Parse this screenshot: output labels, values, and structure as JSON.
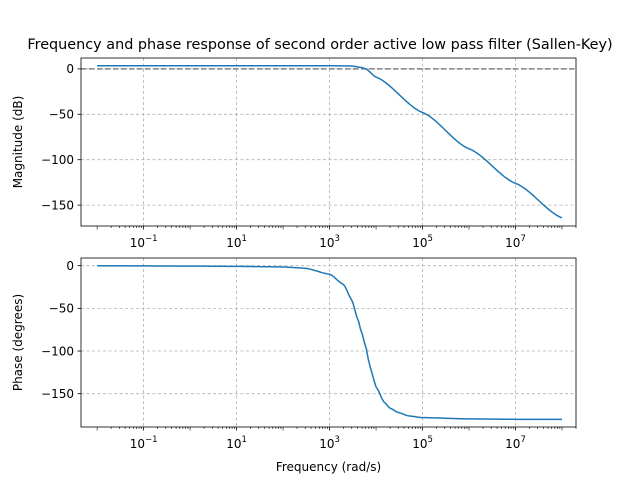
{
  "figure": {
    "title": "Frequency and phase response of second order active low pass filter (Sallen-Key)"
  },
  "chart_data": [
    {
      "type": "line",
      "ylabel": "Magnitude (dB)",
      "xlabel": "",
      "x_scale": "log",
      "xlim": [
        0.0045,
        200000000
      ],
      "ylim": [
        -173,
        12
      ],
      "x_ticks": [
        {
          "value": 0.1,
          "base": "10",
          "exp": "−1"
        },
        {
          "value": 10,
          "base": "10",
          "exp": "1"
        },
        {
          "value": 1000,
          "base": "10",
          "exp": "3"
        },
        {
          "value": 100000,
          "base": "10",
          "exp": "5"
        },
        {
          "value": 10000000,
          "base": "10",
          "exp": "7"
        }
      ],
      "y_ticks": [
        0,
        -50,
        -100,
        -150
      ],
      "grid": true,
      "reference_lines": [
        {
          "y": 0,
          "style": "dashed",
          "color": "#808080"
        }
      ],
      "series": [
        {
          "x": [
            0.01,
            0.1,
            1,
            10,
            100,
            1000,
            3000,
            5000,
            6000,
            10000,
            100000,
            1000000,
            10000000,
            100000000
          ],
          "y": [
            3.5,
            3.5,
            3.5,
            3.5,
            3.5,
            3.5,
            3.2,
            1.5,
            0.0,
            -9,
            -48,
            -88,
            -126,
            -164
          ],
          "color": "#1f77b4"
        }
      ]
    },
    {
      "type": "line",
      "ylabel": "Phase (degrees)",
      "xlabel": "Frequency (rad/s)",
      "x_scale": "log",
      "xlim": [
        0.0045,
        200000000
      ],
      "ylim": [
        -189,
        9
      ],
      "x_ticks": [
        {
          "value": 0.1,
          "base": "10",
          "exp": "−1"
        },
        {
          "value": 10,
          "base": "10",
          "exp": "1"
        },
        {
          "value": 1000,
          "base": "10",
          "exp": "3"
        },
        {
          "value": 100000,
          "base": "10",
          "exp": "5"
        },
        {
          "value": 10000000,
          "base": "10",
          "exp": "7"
        }
      ],
      "y_ticks": [
        0,
        -50,
        -100,
        -150
      ],
      "grid": true,
      "series": [
        {
          "x": [
            0.01,
            1,
            10,
            100,
            300,
            1000,
            2000,
            3000,
            4000,
            5000,
            6000,
            7000,
            8000,
            10000,
            15000,
            20000,
            30000,
            50000,
            100000,
            1000000,
            10000000,
            100000000
          ],
          "y": [
            0,
            -0.5,
            -0.8,
            -1.5,
            -3,
            -10,
            -22,
            -40,
            -62,
            -80,
            -95,
            -112,
            -125,
            -142,
            -160,
            -167,
            -172,
            -176,
            -178,
            -179.5,
            -180,
            -180
          ],
          "color": "#1f77b4"
        }
      ]
    }
  ]
}
